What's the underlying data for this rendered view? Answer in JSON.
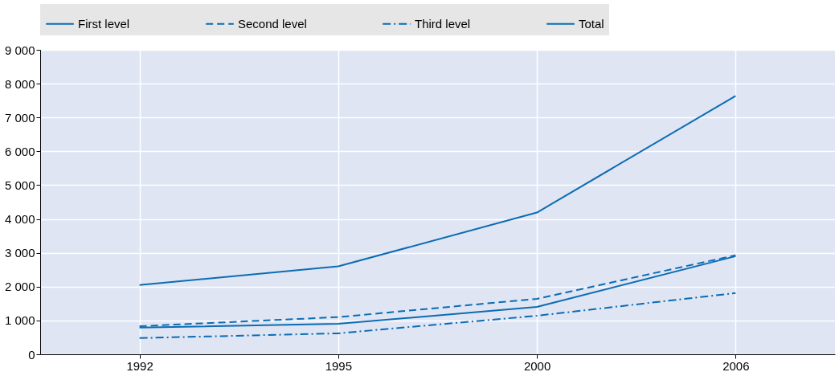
{
  "chart_data": {
    "type": "line",
    "categories": [
      "1992",
      "1995",
      "2000",
      "2006"
    ],
    "series": [
      {
        "name": "First level",
        "color": "#0b6cb4",
        "line_style": "solid",
        "values": [
          790,
          900,
          1400,
          2900
        ]
      },
      {
        "name": "Second level",
        "color": "#0b6cb4",
        "line_style": "dashed",
        "values": [
          830,
          1100,
          1640,
          2930
        ]
      },
      {
        "name": "Third level",
        "color": "#0b6cb4",
        "line_style": "dashdot",
        "values": [
          480,
          620,
          1140,
          1810
        ]
      },
      {
        "name": "Total",
        "color": "#0b6cb4",
        "line_style": "solid",
        "values": [
          2050,
          2600,
          4190,
          7640
        ]
      }
    ],
    "ylim": [
      0,
      9000
    ],
    "yticks": [
      0,
      {
        "value": 1000,
        "label": "1 000"
      },
      {
        "value": 2000,
        "label": "2 000"
      },
      {
        "value": 3000,
        "label": "3 000"
      },
      {
        "value": 4000,
        "label": "4 000"
      },
      {
        "value": 5000,
        "label": "5 000"
      },
      {
        "value": 6000,
        "label": "6 000"
      },
      {
        "value": 7000,
        "label": "7 000"
      },
      {
        "value": 8000,
        "label": "8 000"
      },
      {
        "value": 9000,
        "label": "9 000"
      }
    ],
    "grid": true,
    "legend": "top",
    "marker": "none"
  }
}
